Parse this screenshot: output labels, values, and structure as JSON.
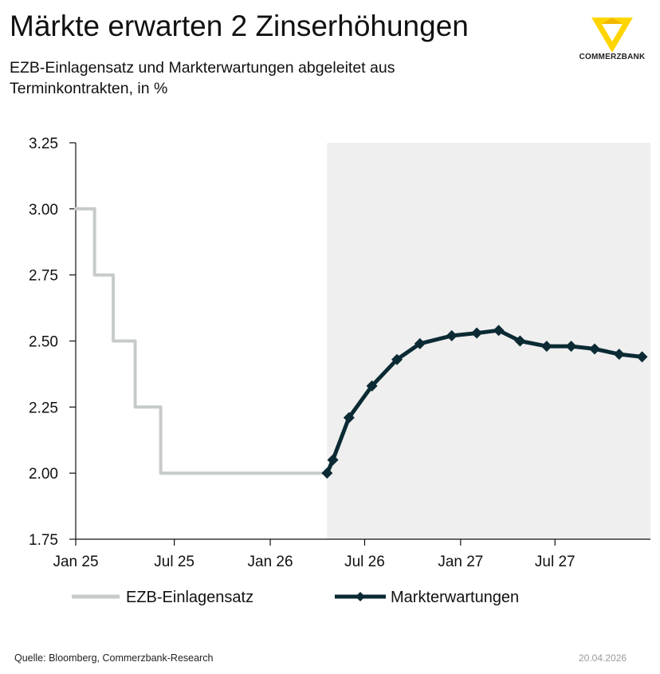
{
  "title": "Märkte erwarten 2 Zinserhöhungen",
  "subtitle": "EZB-Einlagensatz und Markterwartungen abgeleitet aus Terminkontrakten, in %",
  "brand": {
    "name": "COMMERZBANK",
    "logo_color": "#FFD500"
  },
  "footer": {
    "source": "Quelle: Bloomberg, Commerzbank-Research",
    "date": "20.04.2026"
  },
  "chart_data": {
    "type": "line",
    "ylim": [
      1.75,
      3.25
    ],
    "y_ticks": [
      "3.25",
      "3.00",
      "2.75",
      "2.50",
      "2.25",
      "2.00",
      "1.75"
    ],
    "x_range": [
      "2024-12-24",
      "2027-12-31"
    ],
    "x_ticks": [
      {
        "date": "2024-12-24",
        "label": "Jan 25"
      },
      {
        "date": "2025-07-01",
        "label": "Jul 25"
      },
      {
        "date": "2026-01-01",
        "label": "Jan 26"
      },
      {
        "date": "2026-07-01",
        "label": "Jul 26"
      },
      {
        "date": "2027-01-01",
        "label": "Jan 27"
      },
      {
        "date": "2027-07-01",
        "label": "Jul 27"
      }
    ],
    "forecast_shading_start": "2026-04-20",
    "colors": {
      "ezb": "#c6cbc9",
      "market": "#0b2a33",
      "shading": "#efefef"
    },
    "series": [
      {
        "name": "EZB-Einlagensatz",
        "style": "step",
        "points": [
          [
            "2024-12-24",
            3.0
          ],
          [
            "2025-01-29",
            3.0
          ],
          [
            "2025-01-29",
            2.75
          ],
          [
            "2025-03-06",
            2.75
          ],
          [
            "2025-03-06",
            2.5
          ],
          [
            "2025-04-17",
            2.5
          ],
          [
            "2025-04-17",
            2.25
          ],
          [
            "2025-06-05",
            2.25
          ],
          [
            "2025-06-05",
            2.0
          ],
          [
            "2026-04-20",
            2.0
          ]
        ]
      },
      {
        "name": "Markterwartungen",
        "style": "line-markers",
        "points": [
          [
            "2026-04-20",
            2.0
          ],
          [
            "2026-05-01",
            2.05
          ],
          [
            "2026-06-01",
            2.21
          ],
          [
            "2026-07-15",
            2.33
          ],
          [
            "2026-09-01",
            2.43
          ],
          [
            "2026-10-15",
            2.49
          ],
          [
            "2026-12-15",
            2.52
          ],
          [
            "2027-02-01",
            2.53
          ],
          [
            "2027-03-15",
            2.54
          ],
          [
            "2027-04-25",
            2.5
          ],
          [
            "2027-06-15",
            2.48
          ],
          [
            "2027-08-01",
            2.48
          ],
          [
            "2027-09-15",
            2.47
          ],
          [
            "2027-11-01",
            2.45
          ],
          [
            "2027-12-15",
            2.44
          ]
        ]
      }
    ],
    "legend": {
      "position": "bottom",
      "items": [
        "EZB-Einlagensatz",
        "Markterwartungen"
      ]
    }
  }
}
